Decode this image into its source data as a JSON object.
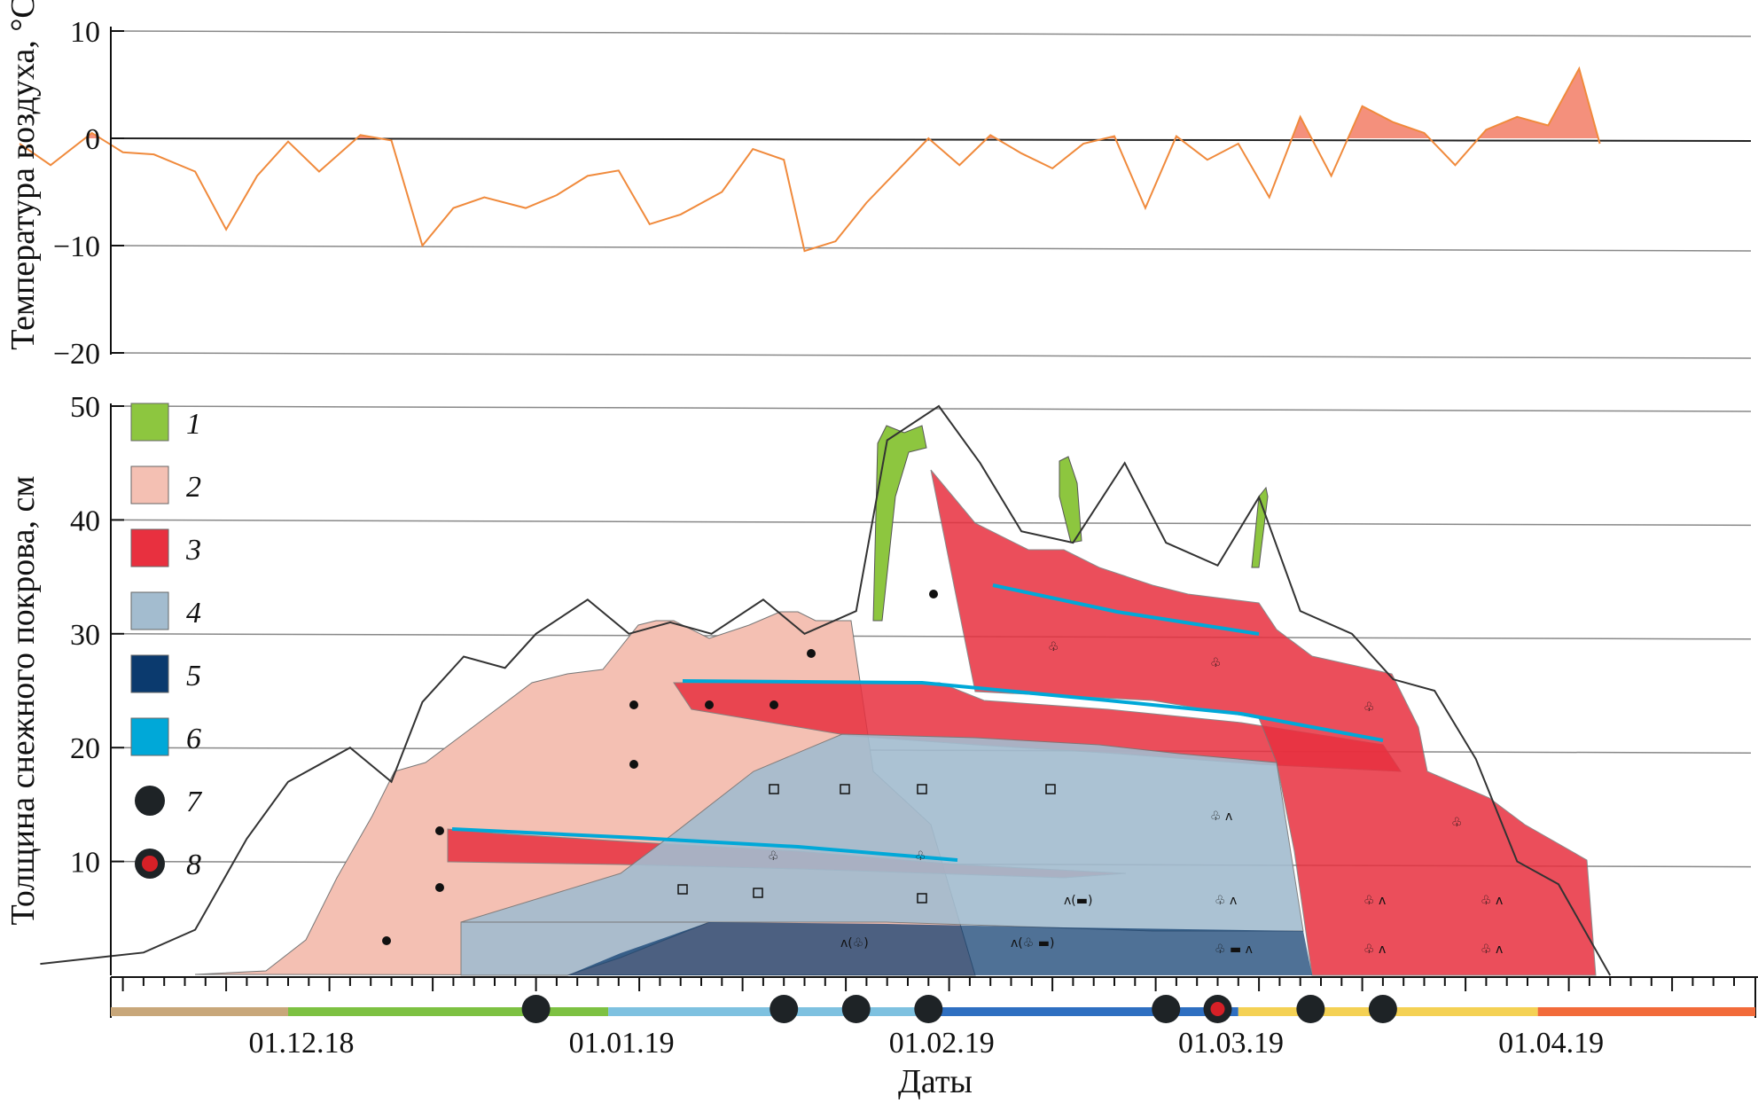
{
  "chart_data": [
    {
      "type": "line",
      "ylabel": "Температура воздуха, °C",
      "ylim": [
        -20,
        10
      ],
      "yticks": [
        10,
        0,
        -10,
        -20
      ],
      "x": [
        "2018-11-05",
        "2018-11-08",
        "2018-11-12",
        "2018-11-15",
        "2018-11-18",
        "2018-11-22",
        "2018-11-25",
        "2018-11-28",
        "2018-12-01",
        "2018-12-04",
        "2018-12-08",
        "2018-12-11",
        "2018-12-14",
        "2018-12-17",
        "2018-12-20",
        "2018-12-24",
        "2018-12-27",
        "2018-12-30",
        "2019-01-02",
        "2019-01-05",
        "2019-01-08",
        "2019-01-12",
        "2019-01-15",
        "2019-01-18",
        "2019-01-20",
        "2019-01-23",
        "2019-01-26",
        "2019-01-29",
        "2019-02-01",
        "2019-02-04",
        "2019-02-07",
        "2019-02-10",
        "2019-02-13",
        "2019-02-16",
        "2019-02-19",
        "2019-02-22",
        "2019-02-25",
        "2019-02-28",
        "2019-03-03",
        "2019-03-06",
        "2019-03-09",
        "2019-03-12",
        "2019-03-15",
        "2019-03-18",
        "2019-03-21",
        "2019-03-24",
        "2019-03-27",
        "2019-03-30",
        "2019-04-02",
        "2019-04-05",
        "2019-04-07"
      ],
      "series": [
        {
          "values": [
            -0.5,
            -2.5,
            0.5,
            -1.3,
            -1.5,
            -3.1,
            -8.5,
            -3.5,
            -0.3,
            -3.1,
            0.3,
            -0.2,
            -10.0,
            -6.5,
            -5.5,
            -6.5,
            -5.3,
            -3.5,
            -3.0,
            -8.0,
            -7.1,
            -5.0,
            -1.0,
            -2.0,
            -10.5,
            -9.6,
            -6.0,
            -3.0,
            0.0,
            -2.5,
            0.3,
            -1.4,
            -2.8,
            -0.5,
            0.2,
            -6.5,
            0.2,
            -2.0,
            -0.5,
            -5.5,
            2.0,
            -3.5,
            3.0,
            1.5,
            0.5,
            -2.5,
            0.8,
            2.0,
            1.2,
            6.5,
            -0.5
          ]
        }
      ]
    },
    {
      "type": "area",
      "xlabel": "Даты",
      "ylabel": "Толщина снежного покрова, см",
      "ylim": [
        0,
        50
      ],
      "yticks": [
        50,
        40,
        30,
        20,
        10
      ],
      "xtick_labels": [
        "01.12.18",
        "01.01.19",
        "01.02.19",
        "01.03.19",
        "01.04.19"
      ],
      "snow_depth_x": [
        "2018-11-07",
        "2018-11-17",
        "2018-11-22",
        "2018-11-27",
        "2018-12-01",
        "2018-12-07",
        "2018-12-11",
        "2018-12-14",
        "2018-12-18",
        "2018-12-22",
        "2018-12-25",
        "2018-12-30",
        "2019-01-03",
        "2019-01-07",
        "2019-01-11",
        "2019-01-16",
        "2019-01-20",
        "2019-01-25",
        "2019-01-28",
        "2019-02-02",
        "2019-02-06",
        "2019-02-10",
        "2019-02-15",
        "2019-02-20",
        "2019-02-24",
        "2019-03-01",
        "2019-03-05",
        "2019-03-09",
        "2019-03-14",
        "2019-03-18",
        "2019-03-22",
        "2019-03-26",
        "2019-03-30",
        "2019-04-03",
        "2019-04-08"
      ],
      "snow_depth_values": [
        1,
        2,
        4,
        12,
        17,
        20,
        17,
        24,
        28,
        27,
        30,
        33,
        30,
        31,
        30,
        33,
        30,
        32,
        47,
        50,
        45,
        39,
        38,
        45,
        38,
        36,
        42,
        32,
        30,
        26,
        25,
        19,
        10,
        8,
        0
      ],
      "legend": [
        {
          "label": "1",
          "color": "#8dc63f"
        },
        {
          "label": "2",
          "color": "#f4c0b3"
        },
        {
          "label": "3",
          "color": "#e8303f"
        },
        {
          "label": "4",
          "color": "#a3bccf"
        },
        {
          "label": "5",
          "color": "#0b3a6e"
        },
        {
          "label": "6",
          "color": "#00a8d8"
        },
        {
          "label": "7",
          "color": "#1e2326"
        },
        {
          "label": "8",
          "color": "#d62027"
        }
      ],
      "observation_dates": [
        "2018-12-25",
        "2019-01-18",
        "2019-01-25",
        "2019-02-01",
        "2019-02-24",
        "2019-03-01",
        "2019-03-10",
        "2019-03-17"
      ],
      "observation_type8_date": "2019-03-01",
      "period_bar": [
        {
          "from": "2018-11-01",
          "to": "2018-12-01",
          "color": "#c8a77a"
        },
        {
          "from": "2018-12-01",
          "to": "2019-01-01",
          "color": "#7dc142"
        },
        {
          "from": "2019-01-01",
          "to": "2019-02-01",
          "color": "#7ec1e0"
        },
        {
          "from": "2019-02-01",
          "to": "2019-03-03",
          "color": "#2e6fc1"
        },
        {
          "from": "2019-03-03",
          "to": "2019-04-01",
          "color": "#f4d154"
        },
        {
          "from": "2019-04-01",
          "to": "2019-05-01",
          "color": "#f26b3a"
        }
      ]
    }
  ]
}
